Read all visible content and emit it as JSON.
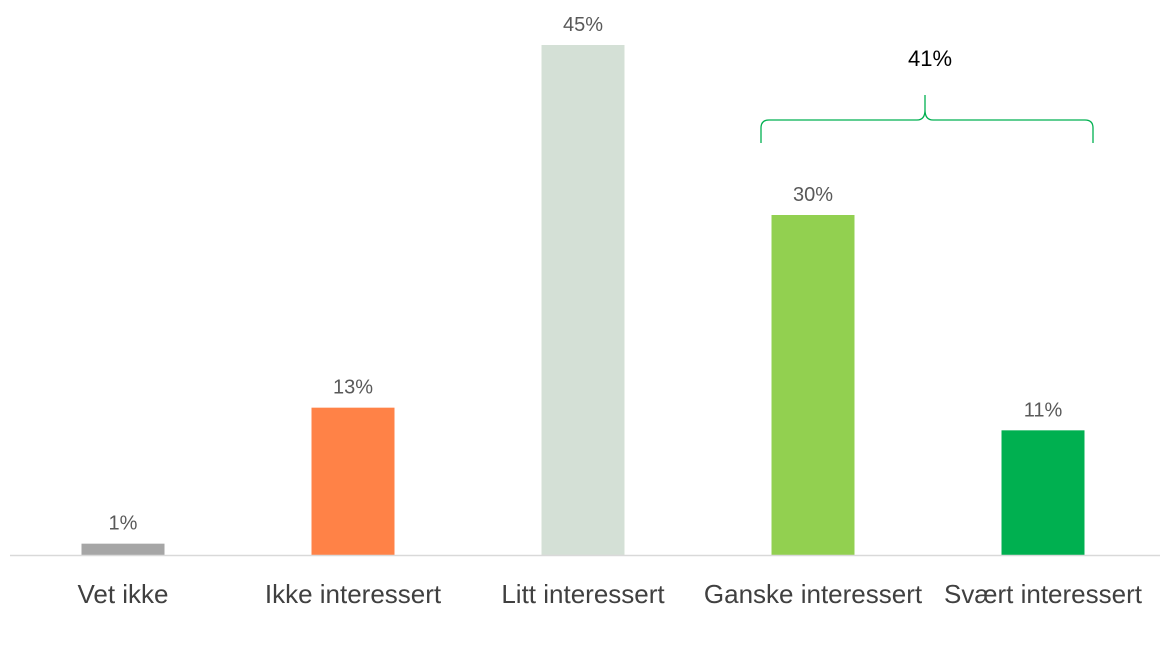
{
  "chart_data": {
    "type": "bar",
    "categories": [
      "Vet ikke",
      "Ikke interessert",
      "Litt interessert",
      "Ganske interessert",
      "Svært interessert"
    ],
    "values": [
      1,
      13,
      45,
      30,
      11
    ],
    "value_labels": [
      "1%",
      "13%",
      "45%",
      "30%",
      "11%"
    ],
    "colors": [
      "#a6a6a6",
      "#ff8247",
      "#d4e0d6",
      "#92d050",
      "#00b050"
    ],
    "ylim": [
      0,
      45
    ],
    "grid": false,
    "annotations": [
      {
        "text": "41%",
        "span": [
          "Ganske interessert",
          "Svært interessert"
        ],
        "color": "#00b050"
      }
    ]
  }
}
